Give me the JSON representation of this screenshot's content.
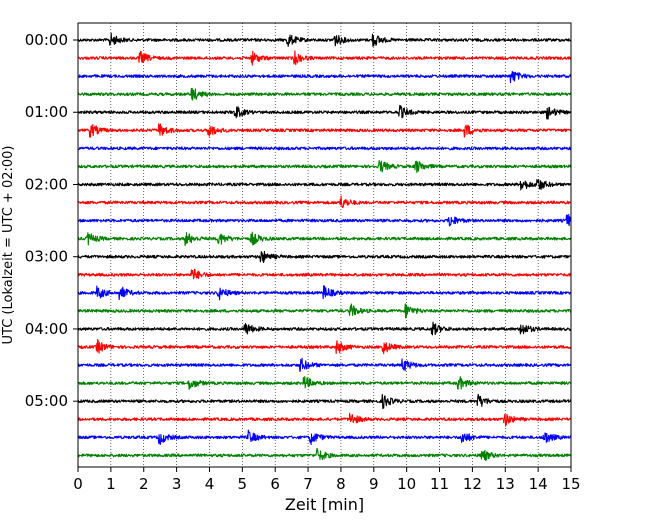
{
  "chart_data": {
    "type": "line",
    "title": "",
    "xlabel": "Zeit  [min]",
    "ylabel": "UTC (Lokalzeit = UTC + 02:00)",
    "xlim": [
      0,
      15
    ],
    "x_ticks": [
      0,
      1,
      2,
      3,
      4,
      5,
      6,
      7,
      8,
      9,
      10,
      11,
      12,
      13,
      14,
      15
    ],
    "y_tick_labels": [
      "00:00",
      "01:00",
      "02:00",
      "03:00",
      "04:00",
      "05:00"
    ],
    "trace_interval_min": 15,
    "trace_count": 24,
    "trace_colors": [
      "#000000",
      "#ff0000",
      "#0000ff",
      "#008000"
    ],
    "grid": {
      "x": true,
      "y": false,
      "style": "dotted"
    },
    "legend": "none",
    "series": [
      {
        "start": "00:00",
        "color": "#000000",
        "events": [
          1.0,
          6.4,
          7.8,
          9.0
        ]
      },
      {
        "start": "00:15",
        "color": "#ff0000",
        "events": [
          1.9,
          5.3,
          6.6
        ]
      },
      {
        "start": "00:30",
        "color": "#0000ff",
        "events": [
          13.2
        ]
      },
      {
        "start": "00:45",
        "color": "#008000",
        "events": [
          3.5
        ]
      },
      {
        "start": "01:00",
        "color": "#000000",
        "events": [
          4.8,
          9.8,
          14.3
        ]
      },
      {
        "start": "01:15",
        "color": "#ff0000",
        "events": [
          0.4,
          2.5,
          4.0,
          11.8
        ]
      },
      {
        "start": "01:30",
        "color": "#0000ff",
        "events": []
      },
      {
        "start": "01:45",
        "color": "#008000",
        "events": [
          9.2,
          10.3
        ]
      },
      {
        "start": "02:00",
        "color": "#000000",
        "events": [
          13.5,
          14.0
        ]
      },
      {
        "start": "02:15",
        "color": "#ff0000",
        "events": [
          8.0
        ]
      },
      {
        "start": "02:30",
        "color": "#0000ff",
        "events": [
          11.3,
          14.9
        ]
      },
      {
        "start": "02:45",
        "color": "#008000",
        "events": [
          0.3,
          3.3,
          4.3,
          5.3
        ]
      },
      {
        "start": "03:00",
        "color": "#000000",
        "events": [
          5.6
        ]
      },
      {
        "start": "03:15",
        "color": "#ff0000",
        "events": [
          3.5
        ]
      },
      {
        "start": "03:30",
        "color": "#0000ff",
        "events": [
          0.6,
          1.3,
          4.3,
          7.5
        ]
      },
      {
        "start": "03:45",
        "color": "#008000",
        "events": [
          8.3,
          10.0
        ]
      },
      {
        "start": "04:00",
        "color": "#000000",
        "events": [
          5.1,
          10.8,
          13.5
        ]
      },
      {
        "start": "04:15",
        "color": "#ff0000",
        "events": [
          0.6,
          7.9,
          9.3
        ]
      },
      {
        "start": "04:30",
        "color": "#0000ff",
        "events": [
          6.8,
          9.9
        ]
      },
      {
        "start": "04:45",
        "color": "#008000",
        "events": [
          3.4,
          6.9,
          11.6
        ]
      },
      {
        "start": "05:00",
        "color": "#000000",
        "events": [
          9.3,
          12.2
        ]
      },
      {
        "start": "05:15",
        "color": "#ff0000",
        "events": [
          8.3,
          13.0
        ]
      },
      {
        "start": "05:30",
        "color": "#0000ff",
        "events": [
          2.5,
          5.2,
          7.1,
          11.7,
          14.2
        ]
      },
      {
        "start": "05:45",
        "color": "#008000",
        "events": [
          7.3,
          12.3
        ]
      }
    ]
  }
}
